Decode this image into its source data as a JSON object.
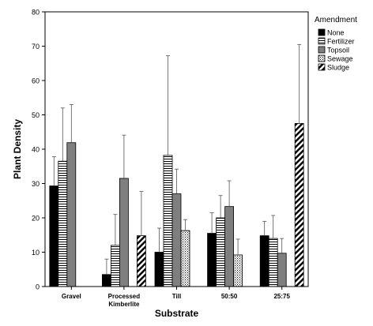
{
  "chart_data": {
    "type": "bar",
    "xlabel": "Substrate",
    "ylabel": "Plant Density",
    "ylim": [
      0,
      80
    ],
    "yticks": [
      0,
      10,
      20,
      30,
      40,
      50,
      60,
      70,
      80
    ],
    "grid": false,
    "legend": {
      "title": "Amendment",
      "placement": "right"
    },
    "categories": [
      "Gravel",
      "Processed\nKimberlite",
      "Till",
      "50:50",
      "25:75"
    ],
    "series": [
      {
        "name": "None",
        "pattern": "solid",
        "values": [
          29.3,
          3.5,
          10.0,
          15.5,
          14.8
        ],
        "err_upper": [
          37.8,
          8.0,
          17.0,
          21.5,
          19.0
        ]
      },
      {
        "name": "Fertilizer",
        "pattern": "hlines",
        "values": [
          36.5,
          12.0,
          38.2,
          20.0,
          14.0
        ],
        "err_upper": [
          52.0,
          21.0,
          67.2,
          26.5,
          20.7
        ]
      },
      {
        "name": "Topsoil",
        "pattern": "gray",
        "values": [
          41.9,
          31.5,
          27.0,
          23.3,
          9.7
        ],
        "err_upper": [
          53.0,
          44.1,
          34.2,
          30.8,
          14.0
        ]
      },
      {
        "name": "Sewage",
        "pattern": "dots",
        "values": [
          null,
          null,
          16.3,
          9.2,
          null
        ],
        "err_upper": [
          null,
          null,
          19.5,
          13.8,
          null
        ]
      },
      {
        "name": "Sludge",
        "pattern": "diagonal",
        "values": [
          null,
          14.8,
          null,
          null,
          47.5
        ],
        "err_upper": [
          null,
          27.7,
          null,
          null,
          70.5
        ]
      }
    ],
    "colors": {
      "solid": "#000000",
      "gray": "#7f7f7f",
      "stroke": "#000000",
      "background": "#ffffff"
    }
  }
}
